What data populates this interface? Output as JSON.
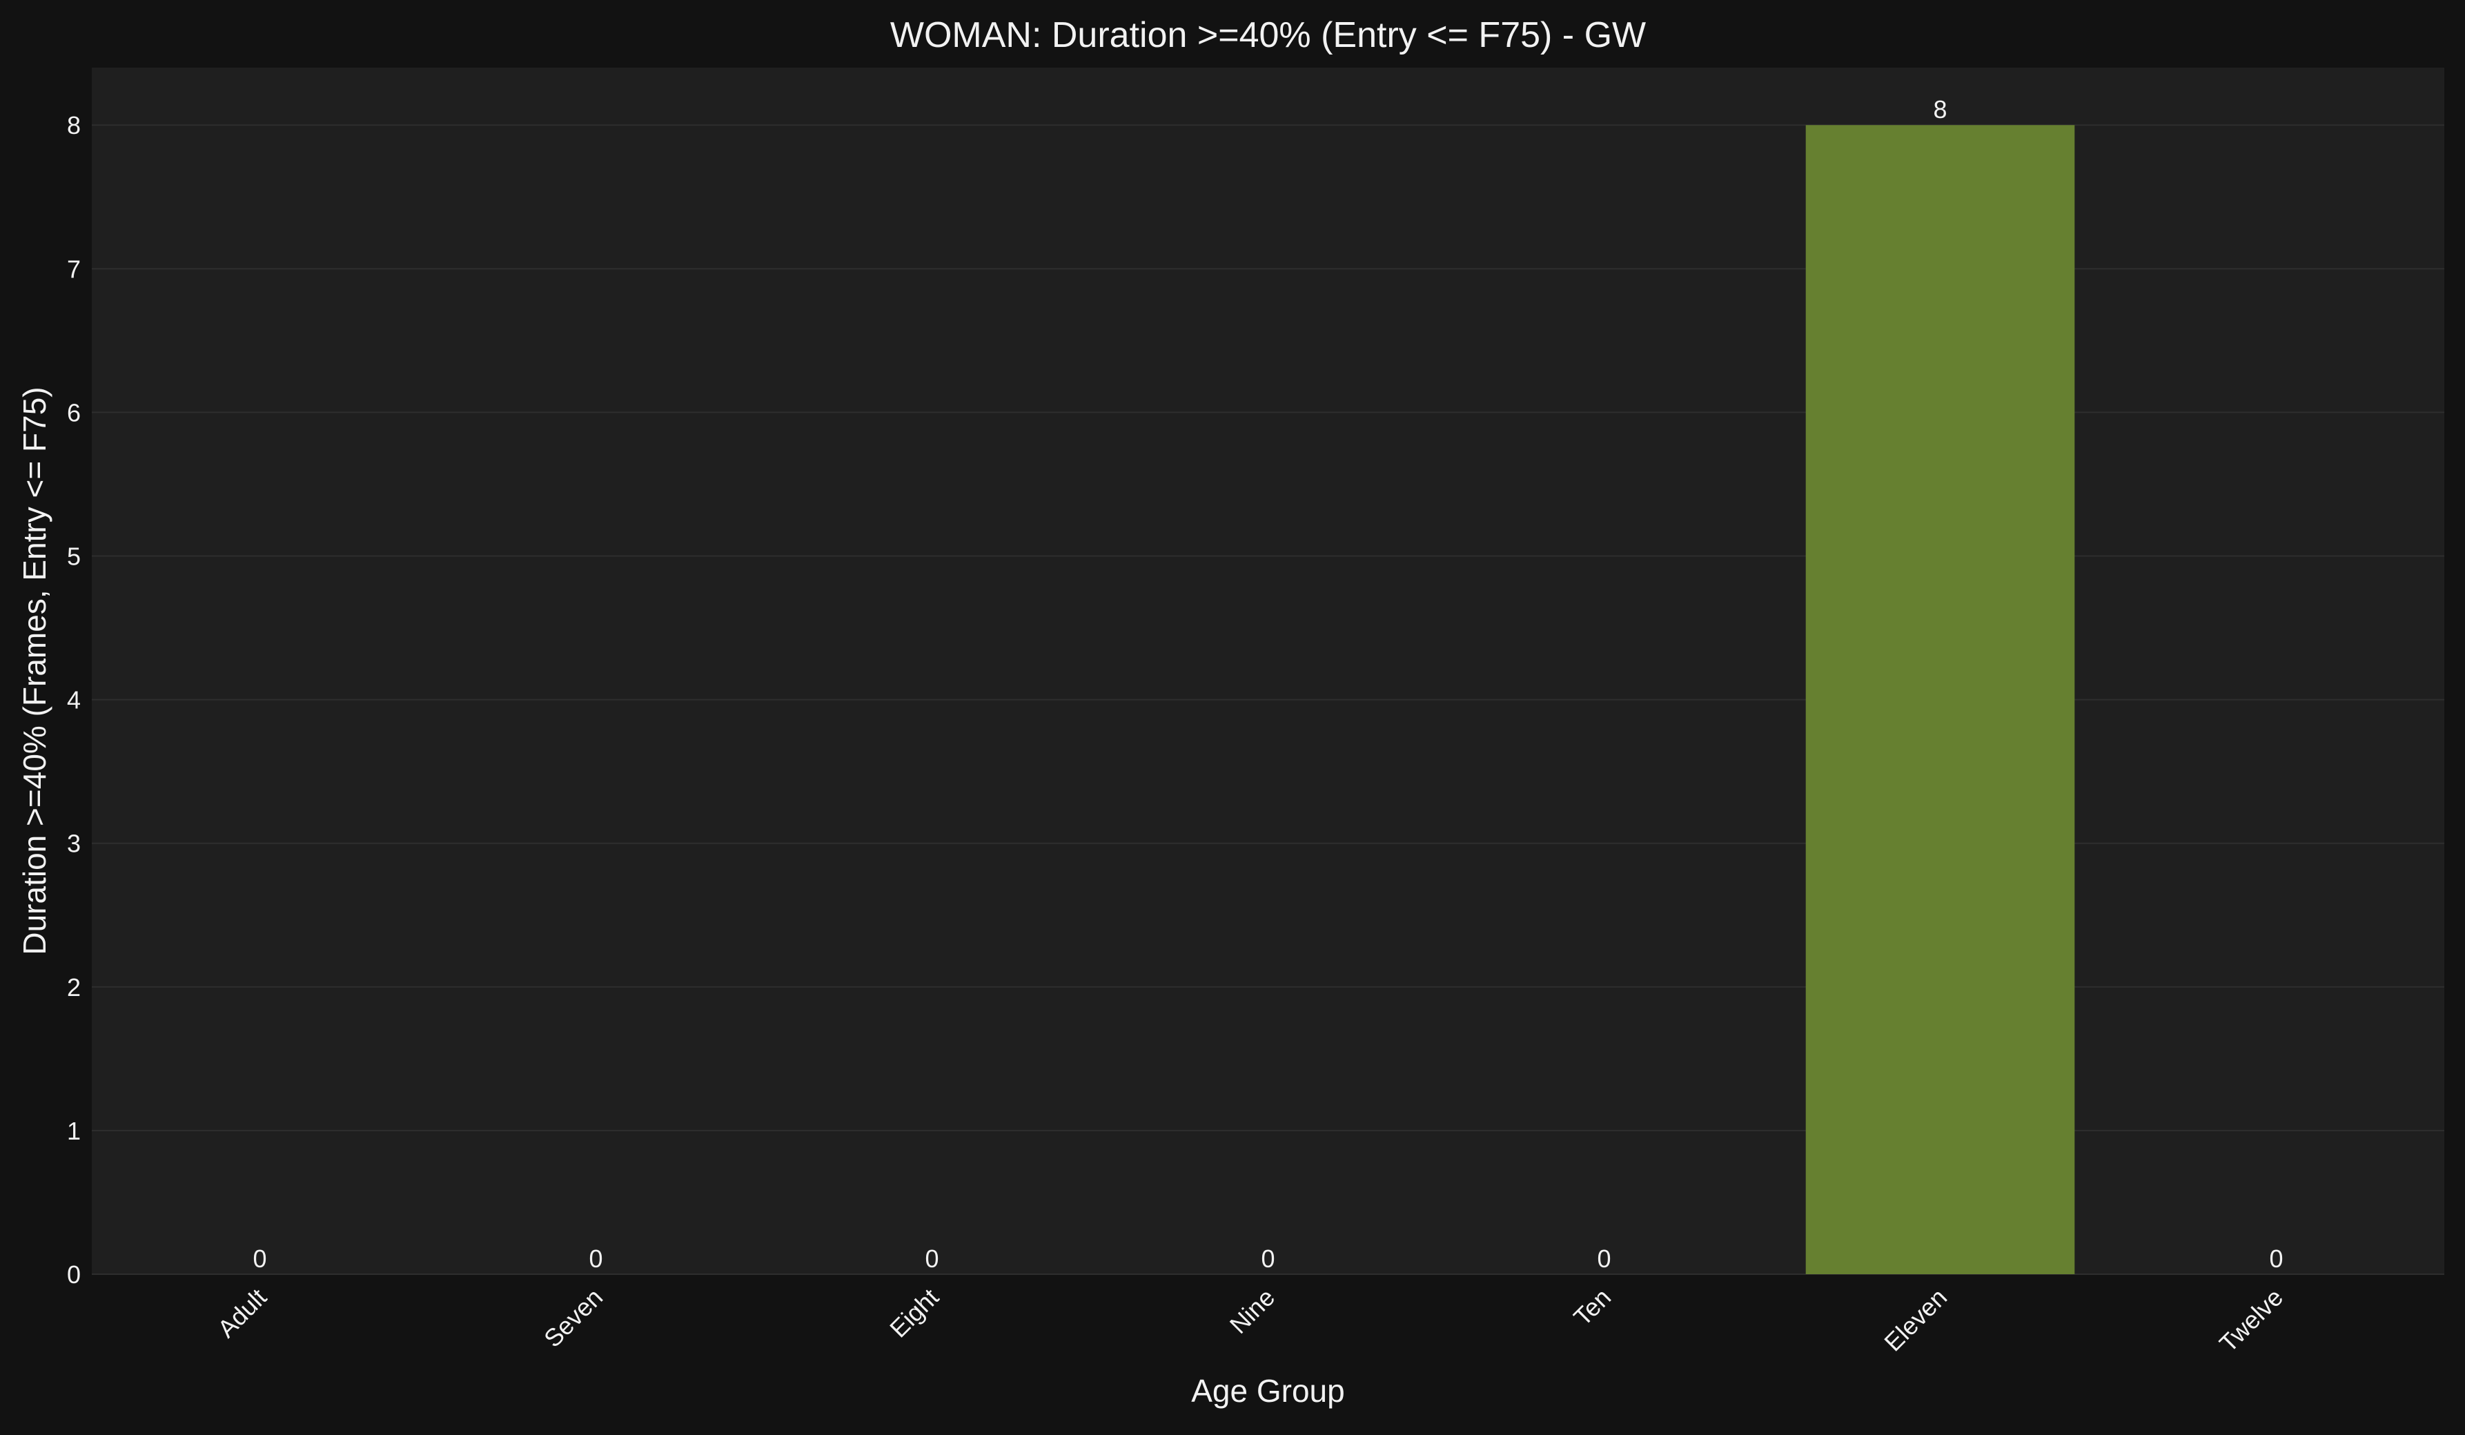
{
  "colors": {
    "page_background": "#121212",
    "plot_background": "#1f1f1f",
    "grid": "#2e2e2e",
    "text": "#f2f2f2",
    "bar": "#668030"
  },
  "chart_data": {
    "type": "bar",
    "title": "WOMAN: Duration >=40% (Entry <= F75) - GW",
    "xlabel": "Age Group",
    "ylabel": "Duration >=40% (Frames, Entry <= F75)",
    "categories": [
      "Adult",
      "Seven",
      "Eight",
      "Nine",
      "Ten",
      "Eleven",
      "Twelve"
    ],
    "values": [
      0,
      0,
      0,
      0,
      0,
      8,
      0
    ],
    "data_labels": [
      "0",
      "0",
      "0",
      "0",
      "0",
      "8",
      "0"
    ],
    "ylim": [
      0,
      8.4
    ],
    "yticks": [
      0,
      1,
      2,
      3,
      4,
      5,
      6,
      7,
      8
    ],
    "grid": true,
    "x_tick_rotation_deg": 45
  }
}
